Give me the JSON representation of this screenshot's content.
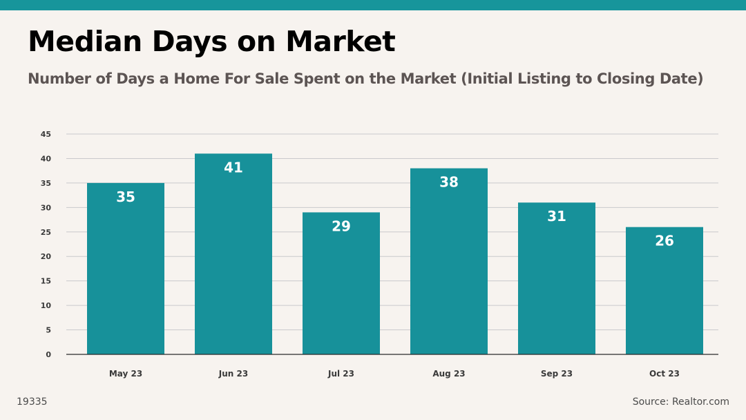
{
  "header": {
    "title": "Median Days on Market",
    "subtitle": "Number of Days a Home For Sale Spent on the Market (Initial Listing to Closing Date)"
  },
  "footer": {
    "id_text": "19335",
    "source": "Source: Realtor.com"
  },
  "colors": {
    "accent": "#17959b",
    "bar": "#17919a",
    "background": "#f7f3ef"
  },
  "chart_data": {
    "type": "bar",
    "categories": [
      "May 23",
      "Jun 23",
      "Jul 23",
      "Aug 23",
      "Sep 23",
      "Oct 23"
    ],
    "values": [
      35,
      41,
      29,
      38,
      31,
      26
    ],
    "data_labels": [
      "35",
      "41",
      "29",
      "38",
      "31",
      "26"
    ],
    "yticks": [
      0,
      5,
      10,
      15,
      20,
      25,
      30,
      35,
      40,
      45
    ],
    "ylim": [
      0,
      45
    ],
    "grid": true,
    "legend": "none"
  }
}
